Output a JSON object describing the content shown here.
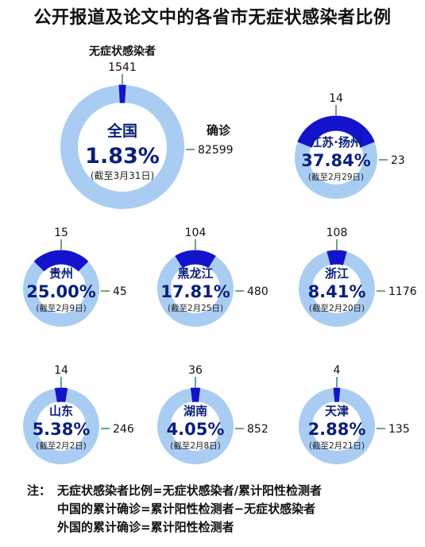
{
  "title": "公开报道及论文中的各省市无症状感染者比例",
  "chart_data": [
    {
      "type": "pie",
      "region": "全国",
      "percent_label": "1.83%",
      "date": "(截至3月31日)",
      "values": [
        1541,
        82599
      ],
      "labels": [
        "无症状感染者",
        "确诊"
      ],
      "asymptomatic_label": "无症状感染者",
      "asymptomatic": 1541,
      "confirmed_label": "确诊",
      "confirmed": 82599
    },
    {
      "type": "pie",
      "region": "江苏·扬州",
      "percent_label": "37.84%",
      "date": "(截至2月29日)",
      "values": [
        14,
        23
      ],
      "asymptomatic": 14,
      "confirmed": 23
    },
    {
      "type": "pie",
      "region": "贵州",
      "percent_label": "25.00%",
      "date": "(截至2月9日)",
      "values": [
        15,
        45
      ],
      "asymptomatic": 15,
      "confirmed": 45
    },
    {
      "type": "pie",
      "region": "黑龙江",
      "percent_label": "17.81%",
      "date": "(截至2月25日)",
      "values": [
        104,
        480
      ],
      "asymptomatic": 104,
      "confirmed": 480
    },
    {
      "type": "pie",
      "region": "浙江",
      "percent_label": "8.41%",
      "date": "(截至2月20日)",
      "values": [
        108,
        1176
      ],
      "asymptomatic": 108,
      "confirmed": 1176
    },
    {
      "type": "pie",
      "region": "山东",
      "percent_label": "5.38%",
      "date": "(截至2月2日)",
      "values": [
        14,
        246
      ],
      "asymptomatic": 14,
      "confirmed": 246
    },
    {
      "type": "pie",
      "region": "湖南",
      "percent_label": "4.05%",
      "date": "(截至2月8日)",
      "values": [
        36,
        852
      ],
      "asymptomatic": 36,
      "confirmed": 852
    },
    {
      "type": "pie",
      "region": "天津",
      "percent_label": "2.88%",
      "date": "(截至2月21日)",
      "values": [
        4,
        135
      ],
      "asymptomatic": 4,
      "confirmed": 135
    }
  ],
  "colors": {
    "asymptomatic": "#1313cc",
    "confirmed": "#a9cdf2",
    "text_dark": "#0b1f7a"
  },
  "note": {
    "label": "注：",
    "lines": [
      "无症状感染者比例=无症状感染者/累计阳性检测者",
      "中国的累计确诊=累计阳性检测者−无症状感染者",
      "外国的累计确诊=累计阳性检测者"
    ]
  }
}
